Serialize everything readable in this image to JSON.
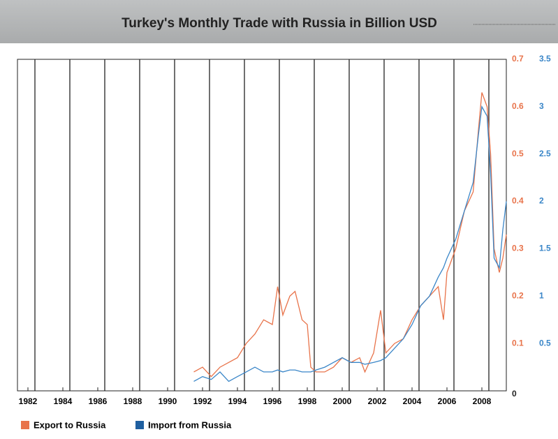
{
  "chart_data": {
    "type": "line",
    "title": "Turkey's Monthly Trade with Russia in Billion USD",
    "x": [
      1991.5,
      1992,
      1992.5,
      1993,
      1993.5,
      1994,
      1994.5,
      1995,
      1995.5,
      1996,
      1996.3,
      1996.6,
      1997,
      1997.3,
      1997.7,
      1998,
      1998.2,
      1998.5,
      1999,
      1999.5,
      2000,
      2000.5,
      2001,
      2001.3,
      2001.8,
      2002.2,
      2002.5,
      2003,
      2003.5,
      2004,
      2004.5,
      2005,
      2005.5,
      2005.8,
      2006,
      2006.5,
      2007,
      2007.5,
      2007.8,
      2008,
      2008.3,
      2008.5,
      2008.7,
      2009,
      2009.2,
      2009.4
    ],
    "series": [
      {
        "name": "Export to Russia",
        "color": "#e8734a",
        "axis": "y",
        "values": [
          0.04,
          0.05,
          0.03,
          0.05,
          0.06,
          0.07,
          0.1,
          0.12,
          0.15,
          0.14,
          0.22,
          0.16,
          0.2,
          0.21,
          0.15,
          0.14,
          0.05,
          0.04,
          0.04,
          0.05,
          0.07,
          0.06,
          0.07,
          0.04,
          0.08,
          0.17,
          0.08,
          0.1,
          0.11,
          0.15,
          0.18,
          0.2,
          0.22,
          0.15,
          0.25,
          0.3,
          0.38,
          0.42,
          0.55,
          0.63,
          0.6,
          0.5,
          0.3,
          0.25,
          0.28,
          0.33
        ]
      },
      {
        "name": "Import from Russia",
        "color": "#3a86c8",
        "axis": "y2",
        "values": [
          0.1,
          0.15,
          0.12,
          0.2,
          0.1,
          0.15,
          0.2,
          0.25,
          0.2,
          0.2,
          0.22,
          0.2,
          0.22,
          0.22,
          0.2,
          0.2,
          0.2,
          0.22,
          0.25,
          0.3,
          0.35,
          0.3,
          0.3,
          0.28,
          0.3,
          0.32,
          0.35,
          0.45,
          0.55,
          0.7,
          0.9,
          1.0,
          1.2,
          1.3,
          1.4,
          1.6,
          1.9,
          2.2,
          2.7,
          3.0,
          2.9,
          2.3,
          1.4,
          1.3,
          1.7,
          2.0
        ]
      }
    ],
    "xlim": [
      1981.4,
      2009.4
    ],
    "xticks": [
      1982,
      1984,
      1986,
      1988,
      1990,
      1992,
      1994,
      1996,
      1998,
      2000,
      2002,
      2004,
      2006,
      2008
    ],
    "ylim": [
      0,
      0.7
    ],
    "yticks": [
      0,
      0.1,
      0.2,
      0.3,
      0.4,
      0.5,
      0.6,
      0.7
    ],
    "y2lim": [
      0,
      3.5
    ],
    "y2ticks": [
      0.5,
      1,
      1.5,
      2,
      2.5,
      3,
      3.5
    ],
    "grid": true
  }
}
